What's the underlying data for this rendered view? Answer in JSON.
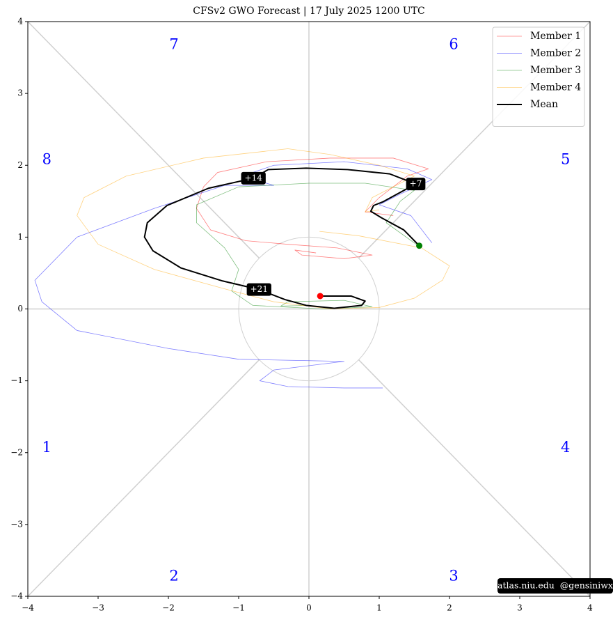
{
  "chart_data": {
    "type": "line",
    "title": "CFSv2 GWO Forecast   |   17  July  2025 1200 UTC",
    "xlim": [
      -4,
      4
    ],
    "ylim": [
      -4,
      4
    ],
    "xticks": [
      {
        "value": -4,
        "label": "−4"
      },
      {
        "value": -3,
        "label": "−3"
      },
      {
        "value": -2,
        "label": "−2"
      },
      {
        "value": -1,
        "label": "−1"
      },
      0,
      1,
      2,
      3,
      4
    ],
    "yticks": [
      {
        "value": -4,
        "label": "−4"
      },
      {
        "value": -3,
        "label": "−3"
      },
      {
        "value": -2,
        "label": "−2"
      },
      {
        "value": -1,
        "label": "−1"
      },
      0,
      1,
      2,
      3,
      4
    ],
    "legend": "upper right",
    "start_color": "green",
    "end_color": "red",
    "series": [
      {
        "name": "Member 1",
        "color": "red",
        "x": [
          1.2,
          0.8,
          1.0,
          1.4,
          1.7,
          1.2,
          0.3,
          -0.6,
          -1.3,
          -1.5,
          -1.6,
          -1.4,
          -0.9,
          -0.3,
          0.4,
          0.9,
          0.5,
          -0.1,
          -0.2,
          0.1
        ],
        "values": [
          1.3,
          1.35,
          1.55,
          1.85,
          1.95,
          2.1,
          2.1,
          2.05,
          1.9,
          1.7,
          1.4,
          1.1,
          0.95,
          0.9,
          0.85,
          0.75,
          0.7,
          0.75,
          0.82,
          0.78
        ]
      },
      {
        "name": "Member 2",
        "color": "blue",
        "x": [
          1.75,
          1.45,
          1.0,
          1.3,
          1.75,
          1.4,
          0.5,
          -0.5,
          -0.95,
          -0.5,
          -1.2,
          -2.2,
          -3.3,
          -3.9,
          -3.8,
          -3.3,
          -2.0,
          -1.0,
          0.5,
          -0.5,
          -0.7,
          -0.3,
          0.5,
          1.05
        ],
        "values": [
          0.92,
          1.3,
          1.45,
          1.6,
          1.8,
          1.95,
          2.05,
          2.0,
          1.85,
          1.72,
          1.72,
          1.4,
          1.0,
          0.4,
          0.1,
          -0.3,
          -0.55,
          -0.7,
          -0.73,
          -0.85,
          -1.0,
          -1.08,
          -1.1,
          -1.1
        ]
      },
      {
        "name": "Member 3",
        "color": "green",
        "x": [
          1.57,
          1.1,
          1.3,
          1.5,
          0.8,
          0.0,
          -1.0,
          -1.6,
          -1.6,
          -1.2,
          -1.0,
          -1.1,
          -0.8,
          0.2,
          0.9,
          0.5,
          -0.3,
          -0.4,
          0.0
        ],
        "values": [
          0.87,
          1.2,
          1.5,
          1.65,
          1.75,
          1.75,
          1.7,
          1.45,
          1.2,
          0.85,
          0.55,
          0.25,
          0.05,
          0.0,
          0.03,
          0.12,
          0.1,
          0.04,
          0.05
        ]
      },
      {
        "name": "Member 4",
        "color": "orange",
        "x": [
          1.0,
          0.8,
          0.9,
          1.5,
          1.0,
          0.3,
          -0.3,
          -1.5,
          -2.6,
          -3.2,
          -3.3,
          -3.0,
          -2.2,
          -1.2,
          -0.5,
          0.3,
          1.0,
          1.5,
          1.9,
          2.0,
          1.6,
          0.7,
          0.15
        ],
        "values": [
          1.38,
          1.35,
          1.55,
          1.85,
          2.0,
          2.15,
          2.23,
          2.1,
          1.85,
          1.55,
          1.3,
          0.9,
          0.55,
          0.28,
          0.1,
          0.0,
          0.02,
          0.15,
          0.4,
          0.6,
          0.85,
          1.02,
          1.08
        ]
      },
      {
        "name": "Mean",
        "color": "black",
        "x": [
          1.57,
          1.35,
          1.03,
          0.88,
          0.92,
          1.05,
          1.52,
          1.15,
          0.55,
          -0.04,
          -0.58,
          -0.79,
          -1.43,
          -2.02,
          -2.3,
          -2.34,
          -2.22,
          -1.82,
          -1.23,
          -0.71,
          -0.34,
          -0.04,
          0.36,
          0.75,
          0.8,
          0.6,
          0.16
        ],
        "values": [
          0.88,
          1.1,
          1.27,
          1.36,
          1.44,
          1.49,
          1.74,
          1.88,
          1.94,
          1.96,
          1.94,
          1.82,
          1.68,
          1.44,
          1.2,
          1.0,
          0.81,
          0.57,
          0.39,
          0.27,
          0.13,
          0.05,
          0.01,
          0.05,
          0.11,
          0.18,
          0.18
        ]
      }
    ],
    "annotations": [
      {
        "label": "+7",
        "x": 1.52,
        "y": 1.74
      },
      {
        "label": "+14",
        "x": -0.79,
        "y": 1.82
      },
      {
        "label": "+21",
        "x": -0.71,
        "y": 0.27
      }
    ],
    "phase_labels": [
      {
        "label": "1",
        "x": -3.73,
        "y": -1.94
      },
      {
        "label": "2",
        "x": -1.92,
        "y": -3.73
      },
      {
        "label": "3",
        "x": 2.06,
        "y": -3.73
      },
      {
        "label": "4",
        "x": 3.65,
        "y": -1.94
      },
      {
        "label": "5",
        "x": 3.65,
        "y": 2.07
      },
      {
        "label": "6",
        "x": 2.06,
        "y": 3.67
      },
      {
        "label": "7",
        "x": -1.92,
        "y": 3.67
      },
      {
        "label": "8",
        "x": -3.73,
        "y": 2.07
      }
    ],
    "watermark": "atlas.niu.edu  @gensiniwx"
  }
}
